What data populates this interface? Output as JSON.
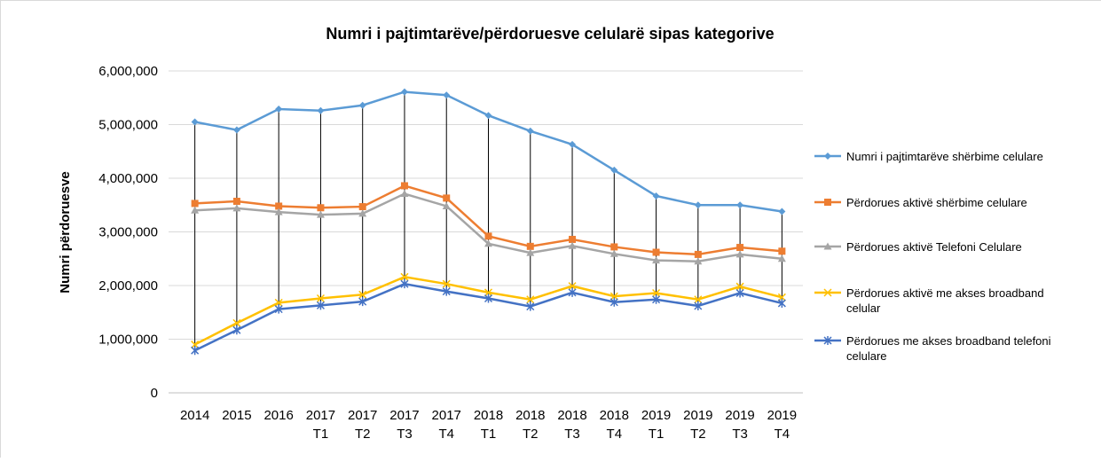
{
  "chart_data": {
    "type": "line",
    "title": "Numri i pajtimtarëve/përdoruesve celularë sipas kategorive",
    "y_label": "Numri përdoruesve",
    "categories": [
      [
        "2014"
      ],
      [
        "2015"
      ],
      [
        "2016"
      ],
      [
        "2017",
        "T1"
      ],
      [
        "2017",
        "T2"
      ],
      [
        "2017",
        "T3"
      ],
      [
        "2017",
        "T4"
      ],
      [
        "2018",
        "T1"
      ],
      [
        "2018",
        "T2"
      ],
      [
        "2018",
        "T3"
      ],
      [
        "2018",
        "T4"
      ],
      [
        "2019",
        "T1"
      ],
      [
        "2019",
        "T2"
      ],
      [
        "2019",
        "T3"
      ],
      [
        "2019",
        "T4"
      ]
    ],
    "ylim": [
      0,
      6000000
    ],
    "yticks": [
      0,
      {
        "value": 1000000,
        "label": "1,000,000"
      },
      {
        "value": 2000000,
        "label": "2,000,000"
      },
      {
        "value": 3000000,
        "label": "3,000,000"
      },
      {
        "value": 4000000,
        "label": "4,000,000"
      },
      {
        "value": 5000000,
        "label": "5,000,000"
      },
      {
        "value": 6000000,
        "label": "6,000,000"
      }
    ],
    "grid": true,
    "legend": "right",
    "series": [
      {
        "name": "Numri i pajtimtarëve shërbime celulare",
        "color": "#5b9bd5",
        "marker": "diamond",
        "values": [
          5050000,
          4900000,
          5290000,
          5260000,
          5360000,
          5610000,
          5550000,
          5170000,
          4880000,
          4630000,
          4150000,
          3670000,
          3500000,
          3500000,
          3380000
        ]
      },
      {
        "name": "Përdorues aktivë shërbime celulare",
        "color": "#ed7d31",
        "marker": "square",
        "values": [
          3530000,
          3570000,
          3480000,
          3450000,
          3470000,
          3860000,
          3630000,
          2920000,
          2730000,
          2860000,
          2720000,
          2620000,
          2580000,
          2710000,
          2640000
        ]
      },
      {
        "name": "Përdorues aktivë Telefoni Celulare",
        "color": "#a5a5a5",
        "marker": "triangle",
        "values": [
          3400000,
          3440000,
          3370000,
          3320000,
          3340000,
          3710000,
          3480000,
          2780000,
          2610000,
          2740000,
          2590000,
          2470000,
          2450000,
          2580000,
          2500000
        ]
      },
      {
        "name": "Përdorues aktivë me akses broadband celular",
        "color": "#ffc000",
        "marker": "x",
        "values": [
          900000,
          1300000,
          1680000,
          1760000,
          1830000,
          2160000,
          2030000,
          1870000,
          1740000,
          1990000,
          1800000,
          1860000,
          1740000,
          1980000,
          1780000
        ]
      },
      {
        "name": "Përdorues  me akses broadband telefoni celulare",
        "color": "#4472c4",
        "marker": "star",
        "values": [
          790000,
          1170000,
          1560000,
          1630000,
          1700000,
          2030000,
          1890000,
          1760000,
          1610000,
          1870000,
          1690000,
          1740000,
          1620000,
          1860000,
          1670000
        ]
      }
    ]
  }
}
